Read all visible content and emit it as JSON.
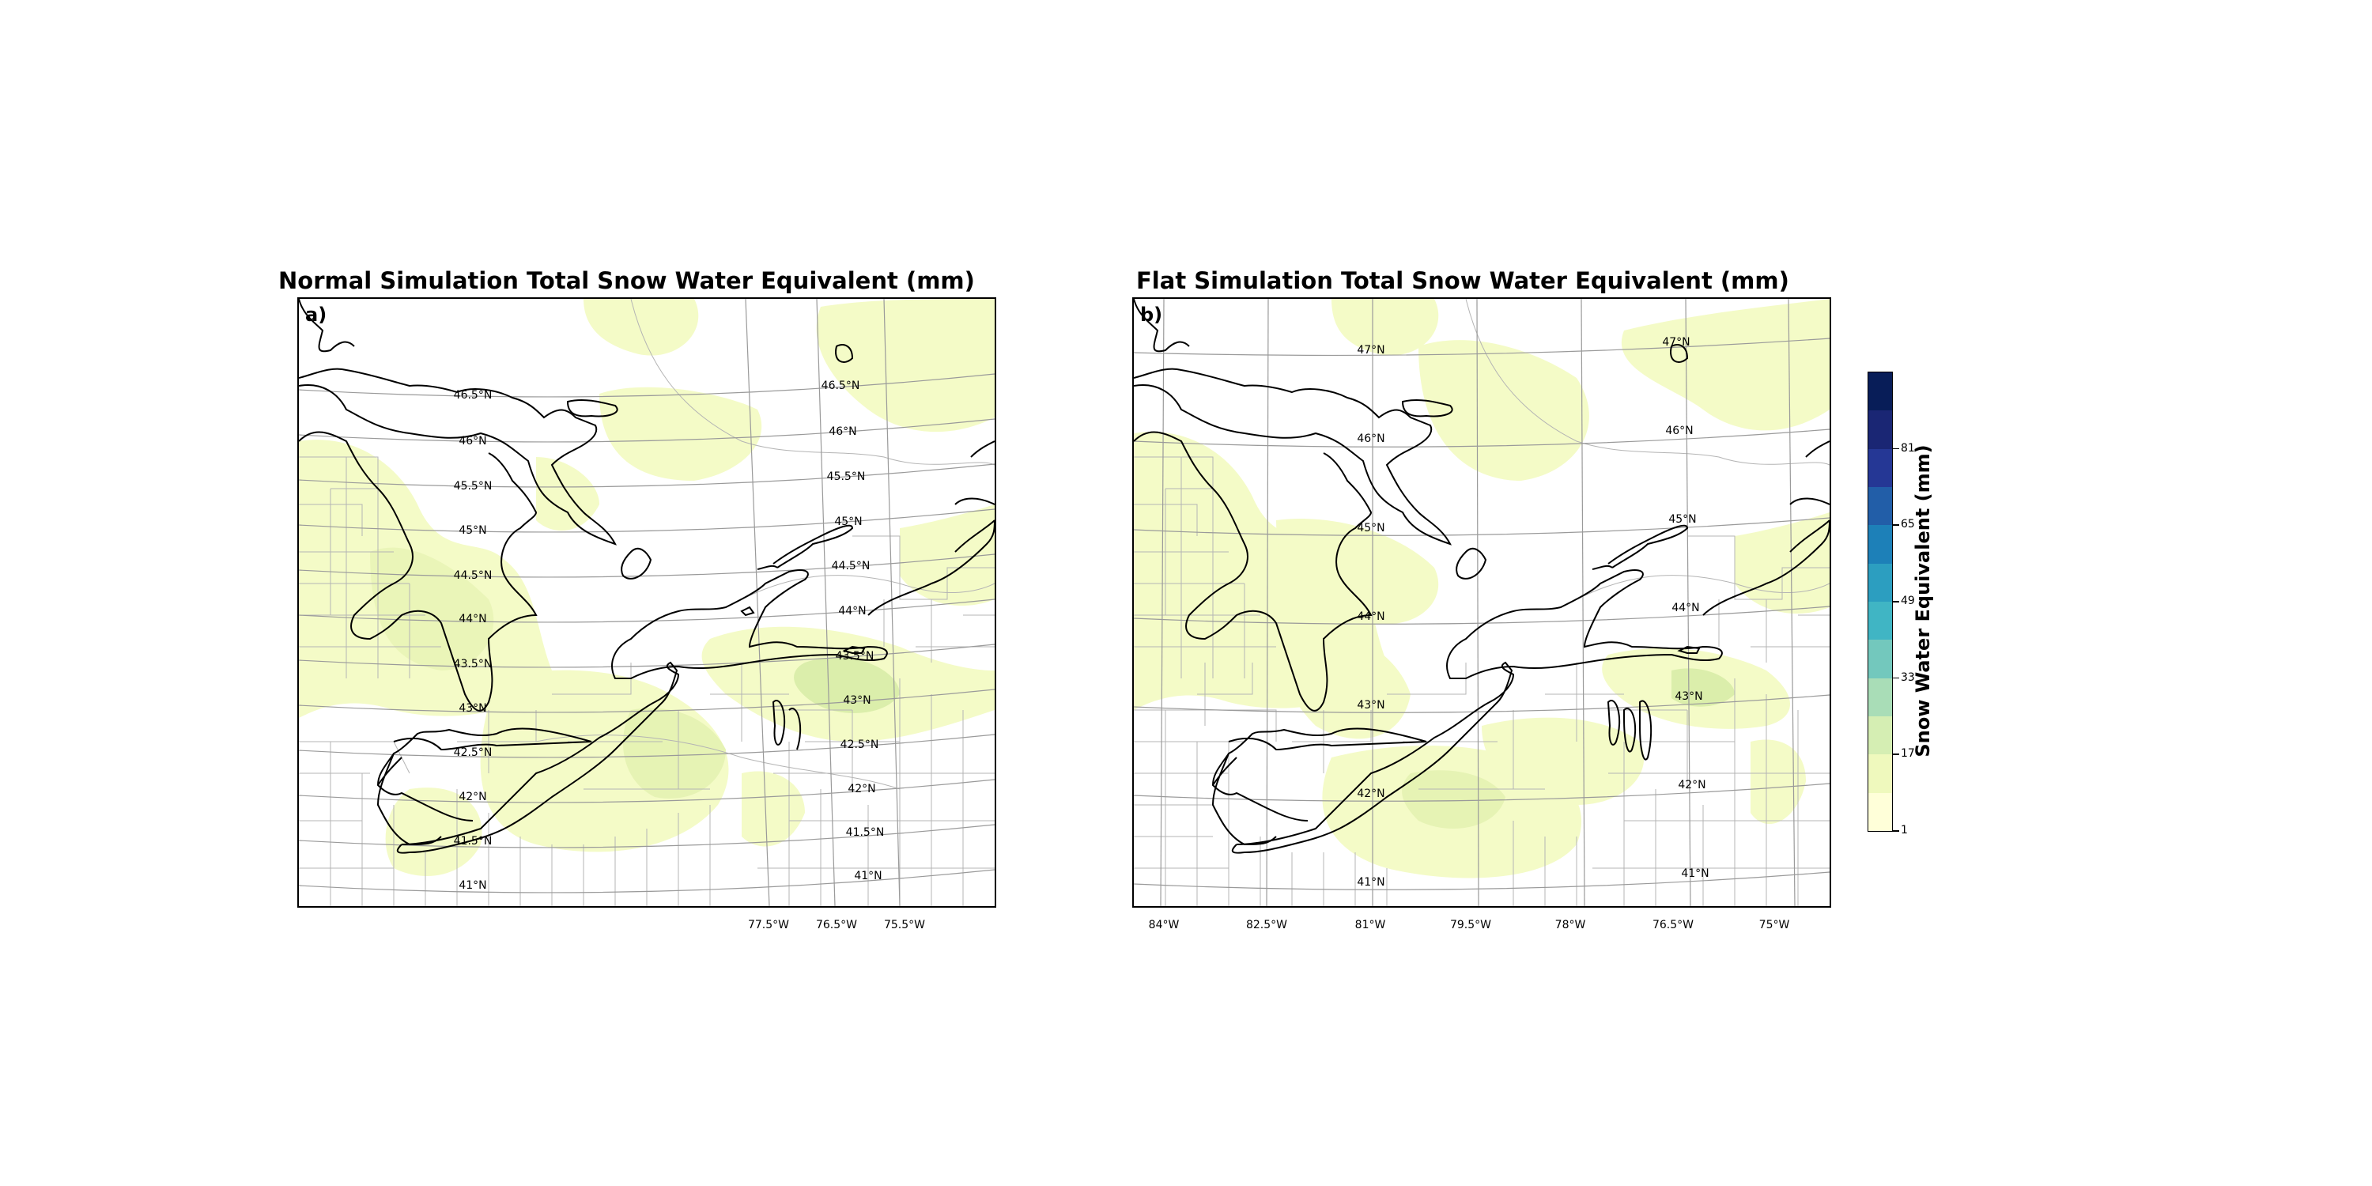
{
  "panels": [
    {
      "title": "Normal Simulation Total Snow Water Equivalent (mm)",
      "label": "a)",
      "lat_labels": [
        "46.5°N",
        "46°N",
        "45.5°N",
        "45°N",
        "44.5°N",
        "44°N",
        "43.5°N",
        "43°N",
        "42.5°N",
        "42°N",
        "41.5°N",
        "41°N"
      ],
      "lat_labels_east": [
        "46.5°N",
        "46°N",
        "45.5°N",
        "45°N",
        "44.5°N",
        "44°N",
        "43.5°N",
        "43°N",
        "42.5°N",
        "42°N",
        "41.5°N",
        "41°N"
      ],
      "lon_labels": [
        "77.5°W",
        "76.5°W",
        "75.5°W"
      ]
    },
    {
      "title": "Flat Simulation Total Snow Water Equivalent (mm)",
      "label": "b)",
      "lat_labels": [
        "47°N",
        "46°N",
        "45°N",
        "44°N",
        "43°N",
        "42°N",
        "41°N"
      ],
      "lat_labels_east": [
        "47°N",
        "46°N",
        "45°N",
        "44°N",
        "43°N",
        "42°N",
        "41°N"
      ],
      "lon_labels": [
        "84°W",
        "82.5°W",
        "81°W",
        "79.5°W",
        "78°W",
        "76.5°W",
        "75°W"
      ]
    }
  ],
  "colorbar": {
    "label": "Snow Water Equivalent (mm)",
    "ticks": [
      "1",
      "17",
      "33",
      "49",
      "65",
      "81"
    ],
    "levels": [
      1,
      9,
      17,
      25,
      33,
      41,
      49,
      57,
      65,
      73,
      81,
      89
    ],
    "colors": [
      "#ffffd9",
      "#eff9bd",
      "#d5eeb3",
      "#a9ddb7",
      "#73c8bd",
      "#40b5c4",
      "#2c9ec0",
      "#1d80b8",
      "#225ea8",
      "#253795",
      "#1a2674",
      "#081d58"
    ]
  },
  "fill_colors": {
    "light": "#f4fbc7",
    "medium": "#e6f3b4",
    "dark": "#d3ebad"
  }
}
